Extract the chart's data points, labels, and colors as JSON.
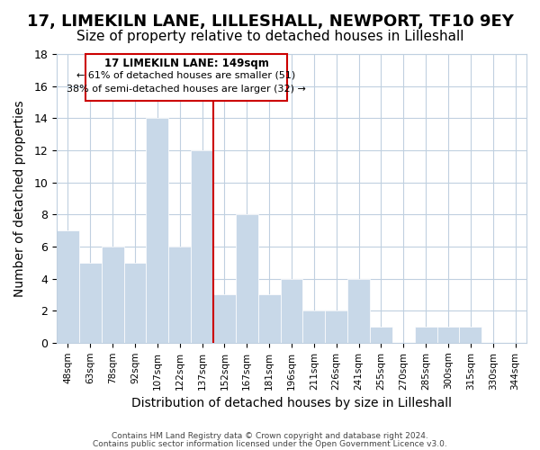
{
  "title": "17, LIMEKILN LANE, LILLESHALL, NEWPORT, TF10 9EY",
  "subtitle": "Size of property relative to detached houses in Lilleshall",
  "xlabel": "Distribution of detached houses by size in Lilleshall",
  "ylabel": "Number of detached properties",
  "bar_color": "#c8d8e8",
  "bar_edge_color": "#ffffff",
  "annotation_title": "17 LIMEKILN LANE: 149sqm",
  "annotation_line1": "← 61% of detached houses are smaller (51)",
  "annotation_line2": "38% of semi-detached houses are larger (32) →",
  "reference_line_color": "#cc0000",
  "footer_line1": "Contains HM Land Registry data © Crown copyright and database right 2024.",
  "footer_line2": "Contains public sector information licensed under the Open Government Licence v3.0.",
  "bins": [
    "48sqm",
    "63sqm",
    "78sqm",
    "92sqm",
    "107sqm",
    "122sqm",
    "137sqm",
    "152sqm",
    "167sqm",
    "181sqm",
    "196sqm",
    "211sqm",
    "226sqm",
    "241sqm",
    "255sqm",
    "270sqm",
    "285sqm",
    "300sqm",
    "315sqm",
    "330sqm",
    "344sqm"
  ],
  "values": [
    7,
    5,
    6,
    5,
    14,
    6,
    12,
    3,
    8,
    3,
    4,
    2,
    2,
    4,
    1,
    0,
    1,
    1,
    1,
    0,
    0
  ],
  "ylim": [
    0,
    18
  ],
  "yticks": [
    0,
    2,
    4,
    6,
    8,
    10,
    12,
    14,
    16,
    18
  ],
  "background_color": "#ffffff",
  "grid_color": "#c0d0e0",
  "title_fontsize": 13,
  "subtitle_fontsize": 11,
  "xlabel_fontsize": 10,
  "ylabel_fontsize": 10
}
